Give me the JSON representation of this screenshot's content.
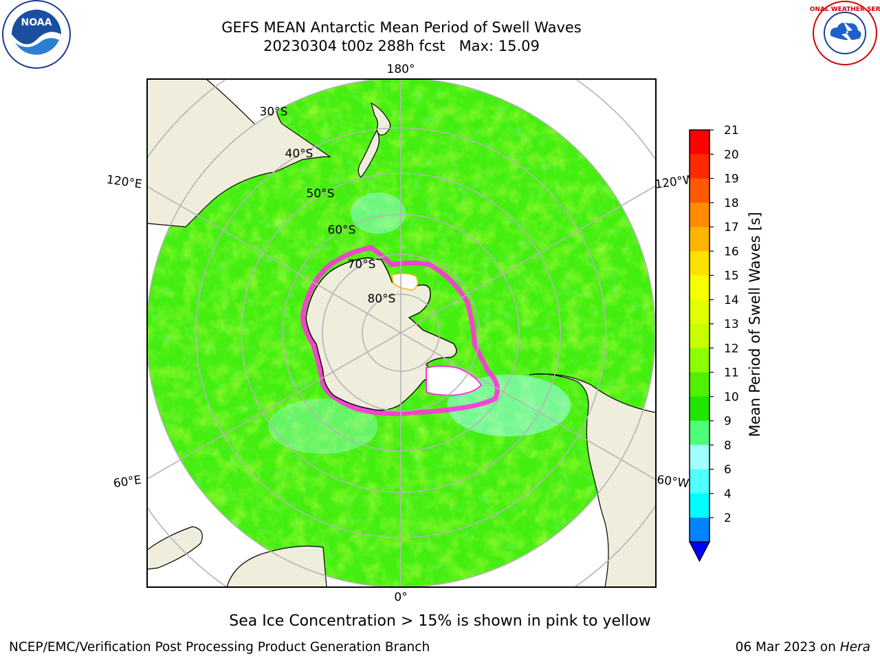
{
  "header": {
    "title_line1": "GEFS MEAN Antarctic Mean Period of Swell Waves",
    "title_line2": "20230304 t00z 288h fcst   Max: 15.09"
  },
  "logos": {
    "left": "noaa-logo",
    "left_text": "NOAA",
    "right": "nws-logo",
    "right_text": "NATIONAL WEATHER SERVICE"
  },
  "map": {
    "projection": "south-polar-stereographic",
    "longitude_labels": [
      "180°",
      "120°E",
      "120°W",
      "60°E",
      "60°W",
      "0°"
    ],
    "latitude_labels": [
      "30°S",
      "40°S",
      "50°S",
      "60°S",
      "70°S",
      "80°S"
    ],
    "colors": {
      "land": "#efeddb",
      "ocean_base": "#44ee11",
      "sea_ice": "#ff33dd",
      "grid": "#b4b4b4"
    }
  },
  "colorbar": {
    "label": "Mean Period of Swell Waves [s]",
    "ticks": [
      "21",
      "20",
      "19",
      "18",
      "17",
      "16",
      "15",
      "14",
      "13",
      "12",
      "11",
      "10",
      "9",
      "8",
      "6",
      "4",
      "2"
    ],
    "colors_top_to_bottom": [
      "#ff0000",
      "#ff2a00",
      "#ff5a00",
      "#ff8c00",
      "#ffb400",
      "#ffe100",
      "#f5ff00",
      "#e1ff00",
      "#c8ff00",
      "#8cff00",
      "#50f000",
      "#1ee600",
      "#50ff78",
      "#a0ffff",
      "#50ffff",
      "#00ffff",
      "#0084ff"
    ],
    "extend_color": "#0000ff"
  },
  "footer": {
    "note": "Sea Ice Concentration > 15% is shown in pink to yellow",
    "credit": "NCEP/EMC/Verification Post Processing Product Generation Branch",
    "date": "06 Mar 2023 on",
    "machine": "Hera"
  }
}
